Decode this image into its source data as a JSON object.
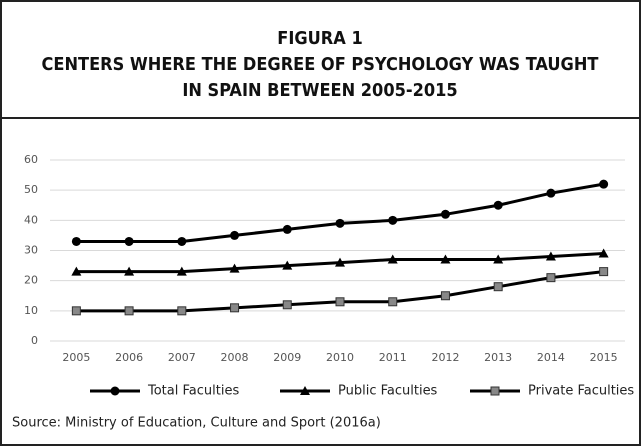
{
  "chart_data": {
    "type": "line",
    "title": [
      "FIGURA 1",
      "CENTERS WHERE THE DEGREE OF PSYCHOLOGY WAS TAUGHT",
      "IN SPAIN BETWEEN 2005-2015"
    ],
    "categories": [
      "2005",
      "2006",
      "2007",
      "2008",
      "2009",
      "2010",
      "2011",
      "2012",
      "2013",
      "2014",
      "2015"
    ],
    "series": [
      {
        "name": "Total Faculties",
        "color": "#000000",
        "marker": "circle",
        "values": [
          33,
          33,
          33,
          35,
          37,
          39,
          40,
          42,
          45,
          49,
          52
        ]
      },
      {
        "name": "Public Faculties",
        "color": "#000000",
        "marker": "triangle",
        "values": [
          23,
          23,
          23,
          24,
          25,
          26,
          27,
          27,
          27,
          28,
          29
        ]
      },
      {
        "name": "Private Faculties",
        "color": "#000000",
        "marker": "square",
        "values": [
          10,
          10,
          10,
          11,
          12,
          13,
          13,
          15,
          18,
          21,
          23
        ]
      }
    ],
    "ylim": [
      0,
      60
    ],
    "yticks": [
      0,
      10,
      20,
      30,
      40,
      50,
      60
    ],
    "grid": true,
    "source": "Source: Ministry of Education, Culture and Sport (2016a)"
  }
}
